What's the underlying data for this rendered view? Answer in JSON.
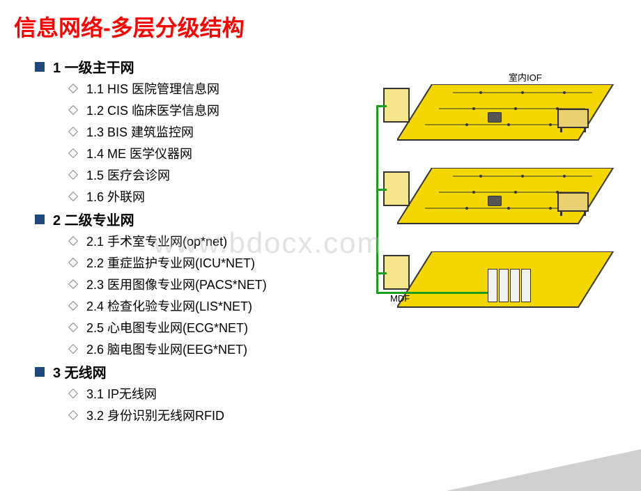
{
  "title": "信息网络-多层分级结构",
  "watermark": "www.bdocx.com",
  "sections": [
    {
      "title": "1 一级主干网",
      "items": [
        "1.1  HIS 医院管理信息网",
        "1.2  CIS 临床医学信息网",
        "1.3  BIS 建筑监控网",
        "1.4  ME 医学仪器网",
        "1.5  医疗会诊网",
        "1.6  外联网"
      ]
    },
    {
      "title": "2 二级专业网",
      "items": [
        "2.1  手术室专业网(op*net)",
        "2.2  重症监护专业网(ICU*NET)",
        "2.3  医用图像专业网(PACS*NET)",
        "2.4  检查化验专业网(LIS*NET)",
        "2.5  心电图专业网(ECG*NET)",
        "2.6  脑电图专业网(EEG*NET)"
      ]
    },
    {
      "title": "3 无线网",
      "items": [
        "3.1  IP无线网",
        "3.2  身份识别无线网RFID"
      ]
    }
  ],
  "diagram": {
    "label_top": "室内IOF",
    "label_mdf": "MDF",
    "floor_count": 3,
    "colors": {
      "floor_fill": "#f5d700",
      "floor_stroke": "#333333",
      "cable": "#1a9e1a",
      "cabinet_fill": "#f5e68c",
      "device_stroke": "#333333"
    }
  }
}
